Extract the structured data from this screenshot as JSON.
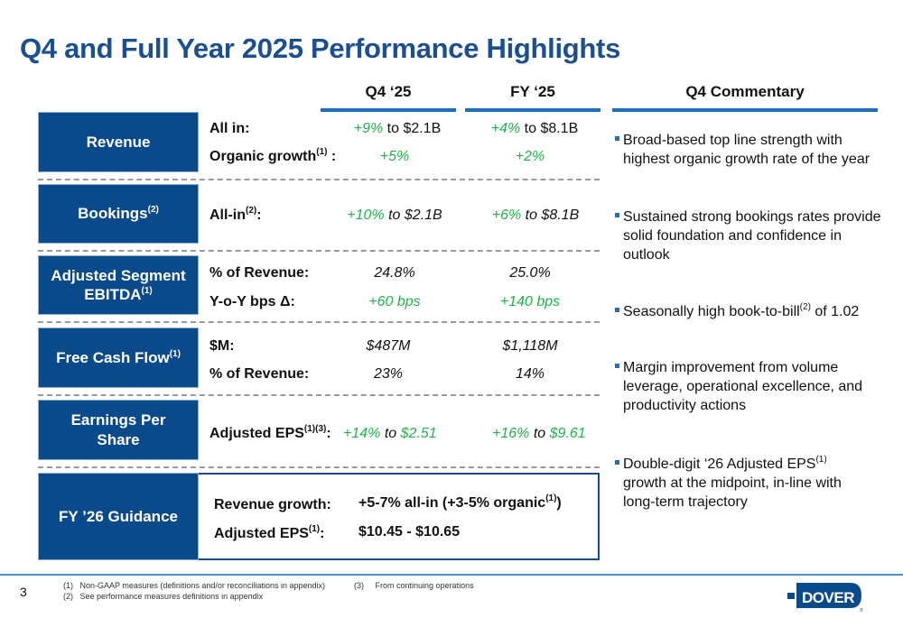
{
  "title": "Q4 and Full Year 2025 Performance Highlights",
  "columns": {
    "q4": "Q4 ‘25",
    "fy": "FY ‘25",
    "commentary": "Q4 Commentary"
  },
  "rows": {
    "revenue": {
      "label": "Revenue",
      "l1": "All in:",
      "l2": "Organic growth",
      "l2sup": "(1)",
      "l2end": " :",
      "q4a_g": "+9%",
      "q4a": " to $2.1B",
      "fya_g": "+4%",
      "fya": " to $8.1B",
      "q4b": "+5%",
      "fyb": "+2%"
    },
    "bookings": {
      "label": "Bookings",
      "sup": "(2)",
      "l1": "All-in",
      "l1sup": "(2)",
      "l1end": ":",
      "q4_g": "+10%",
      "q4": " to $2.1B",
      "fy_g": "+6%",
      "fy": " to $8.1B"
    },
    "ebitda": {
      "label1": "Adjusted Segment",
      "label2": "EBITDA",
      "sup": "(1)",
      "l1": "% of Revenue:",
      "l2": "Y-o-Y bps Δ:",
      "q4a": "24.8%",
      "fya": "25.0%",
      "q4b": "+60 bps",
      "fyb": "+140 bps"
    },
    "fcf": {
      "label": "Free Cash Flow",
      "sup": "(1)",
      "l1": "$M:",
      "l2": "% of Revenue:",
      "q4a": "$487M",
      "fya": "$1,118M",
      "q4b": "23%",
      "fyb": "14%"
    },
    "eps": {
      "label": "Earnings Per Share",
      "l1": "Adjusted EPS",
      "l1sup": "(1)(3)",
      "l1end": ":",
      "q4_g": "+14%",
      "q4_to": " to ",
      "q4_v": "$2.51",
      "fy_g": "+16%",
      "fy_to": " to ",
      "fy_v": "$9.61"
    },
    "guidance": {
      "label": "FY ’26 Guidance",
      "l1": "Revenue growth:",
      "l2": "Adjusted EPS",
      "l2sup": "(1)",
      "l2end": ":",
      "v1": "+5-7% all-in (+3-5% organic",
      "v1sup": "(1)",
      "v1end": ")",
      "v2": "$10.45 - $10.65"
    }
  },
  "commentary": [
    {
      "text": "Broad-based top line strength with highest organic growth rate of the year"
    },
    {
      "text": "Sustained strong bookings rates provide solid foundation and confidence in outlook"
    },
    {
      "text": "Seasonally high book-to-bill",
      "sup": "(2)",
      "end": " of 1.02"
    },
    {
      "text": "Margin improvement from volume leverage, operational excellence, and productivity actions"
    },
    {
      "text": "Double-digit ‘26 Adjusted EPS",
      "sup": "(1)",
      "end": " growth at the midpoint, in-line with long-term trajectory"
    }
  ],
  "footer": {
    "page": "3",
    "n1": "(1)",
    "f1": "Non-GAAP measures (definitions and/or reconciliations in appendix)",
    "n2": "(2)",
    "f2": "See performance measures definitions in appendix",
    "n3": "(3)",
    "f3": "From continuing operations",
    "logo": "DOVER"
  },
  "colors": {
    "navy": "#0a4a8a",
    "green": "#22b14c",
    "accent": "#1f6fc0"
  }
}
